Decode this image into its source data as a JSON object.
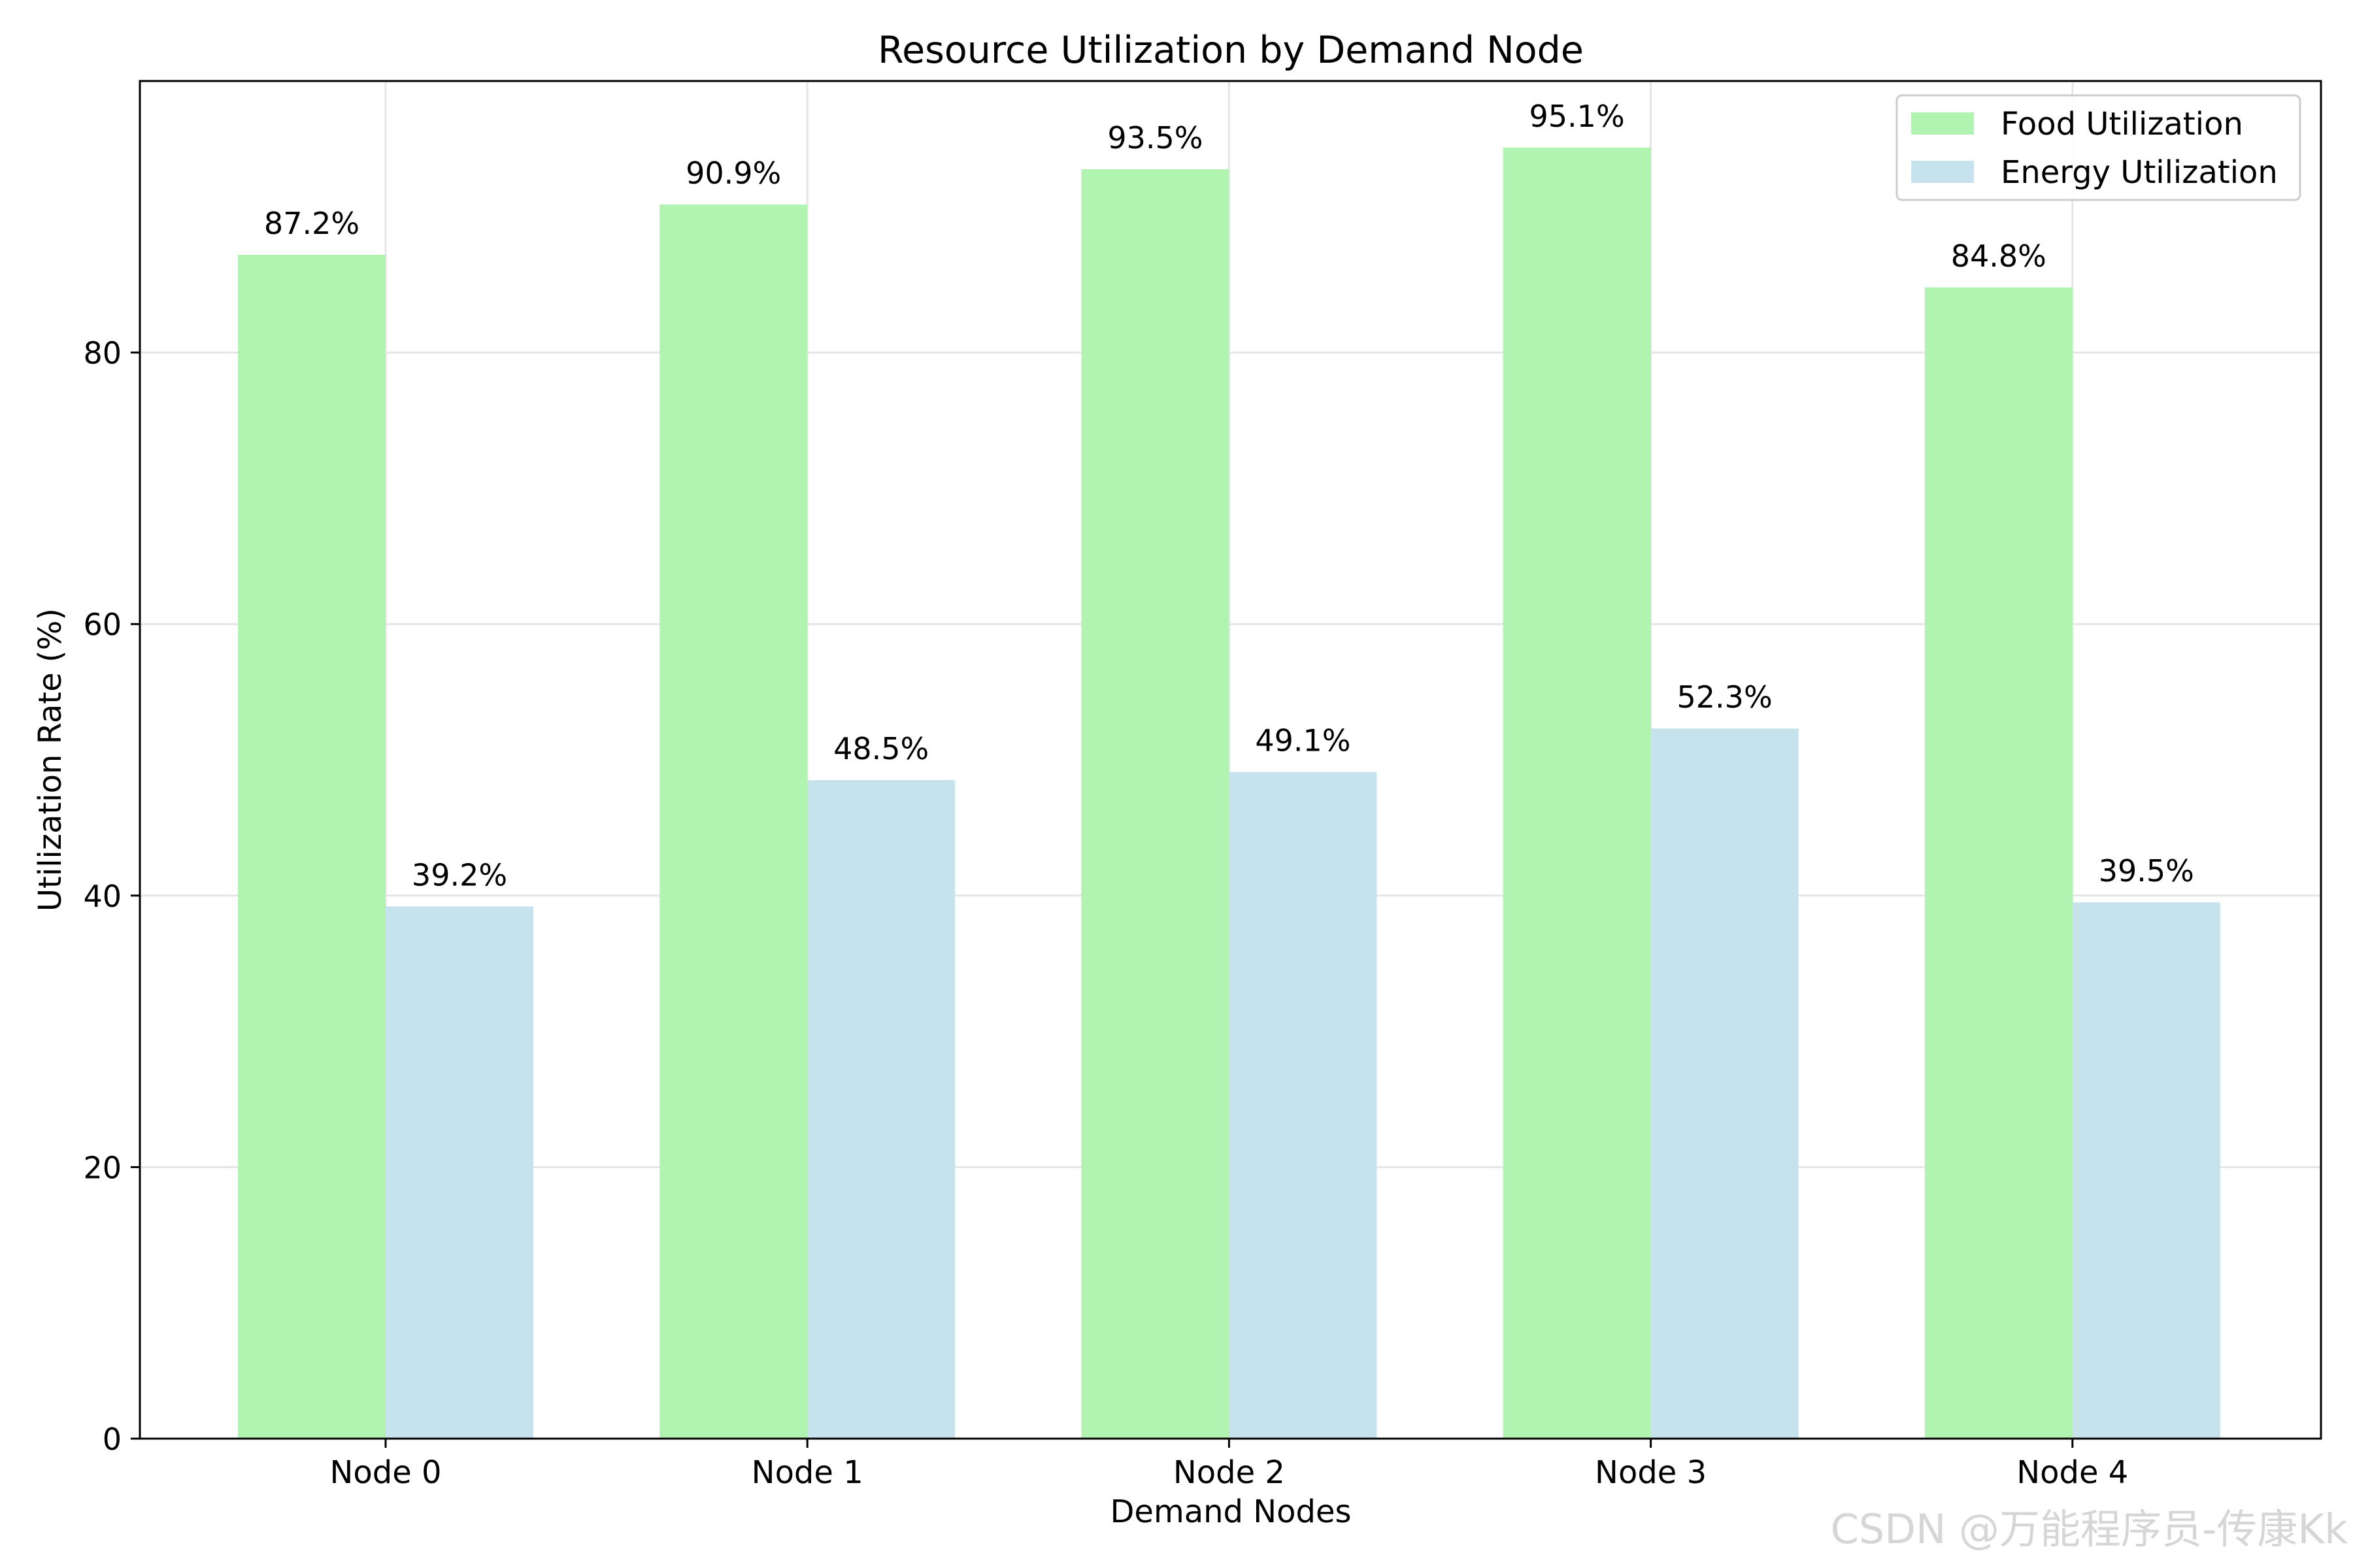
{
  "chart_data": {
    "type": "bar",
    "title": "Resource Utilization by Demand Node",
    "xlabel": "Demand Nodes",
    "ylabel": "Utilization Rate (%)",
    "categories": [
      "Node 0",
      "Node 1",
      "Node 2",
      "Node 3",
      "Node 4"
    ],
    "series": [
      {
        "name": "Food Utilization",
        "color": "#b1f3b0",
        "values": [
          87.2,
          90.9,
          93.5,
          95.1,
          84.8
        ],
        "labels": [
          "87.2%",
          "90.9%",
          "93.5%",
          "95.1%",
          "84.8%"
        ]
      },
      {
        "name": "Energy Utilization",
        "color": "#c6e2ec",
        "values": [
          39.2,
          48.5,
          49.1,
          52.3,
          39.5
        ],
        "labels": [
          "39.2%",
          "48.5%",
          "49.1%",
          "52.3%",
          "39.5%"
        ]
      }
    ],
    "ylim": [
      0,
      100
    ],
    "yticks": [
      0,
      20,
      40,
      60,
      80
    ],
    "grid": true,
    "legend_position": "top-right"
  },
  "watermark": "CSDN @万能程序员-传康Kk"
}
